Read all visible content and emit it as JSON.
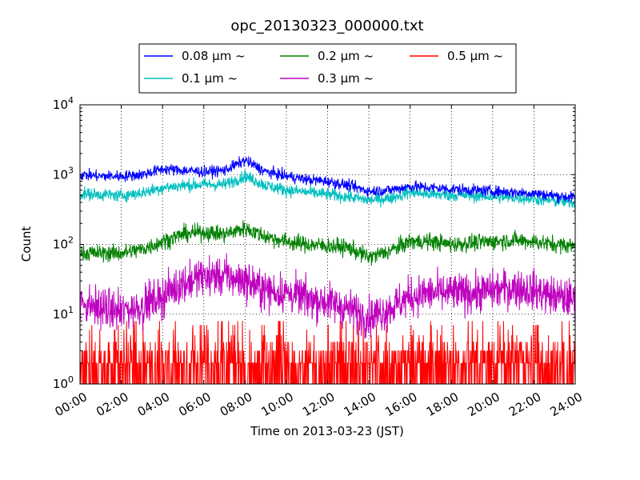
{
  "chart_data": {
    "type": "line",
    "title": "opc_20130323_000000.txt",
    "xlabel": "Time on 2013-03-23 (JST)",
    "ylabel": "Count",
    "y_scale": "log",
    "ylim": [
      1,
      10000
    ],
    "xlim": [
      "00:00",
      "24:00"
    ],
    "x_ticks": [
      "00:00",
      "02:00",
      "04:00",
      "06:00",
      "08:00",
      "10:00",
      "12:00",
      "14:00",
      "16:00",
      "18:00",
      "20:00",
      "22:00",
      "24:00"
    ],
    "y_ticks": [
      {
        "value": 1,
        "base": "10",
        "exp": "0"
      },
      {
        "value": 10,
        "base": "10",
        "exp": "1"
      },
      {
        "value": 100,
        "base": "10",
        "exp": "2"
      },
      {
        "value": 1000,
        "base": "10",
        "exp": "3"
      },
      {
        "value": 10000,
        "base": "10",
        "exp": "4"
      }
    ],
    "grid": true,
    "legend_position": "top",
    "legend": [
      {
        "label": "0.08 μm ~",
        "color": "#0000ff"
      },
      {
        "label": "0.2 μm ~",
        "color": "#008000"
      },
      {
        "label": "0.5 μm ~",
        "color": "#ff0000"
      },
      {
        "label": "0.1 μm ~",
        "color": "#00bfbf"
      },
      {
        "label": "0.3 μm ~",
        "color": "#bf00bf"
      }
    ],
    "series": [
      {
        "name": "0.08 μm ~",
        "color": "#0000ff",
        "noise": 0.08,
        "x": [
          "00:00",
          "01:00",
          "02:00",
          "03:00",
          "04:00",
          "05:00",
          "06:00",
          "07:00",
          "08:00",
          "09:00",
          "10:00",
          "11:00",
          "12:00",
          "13:00",
          "14:00",
          "15:00",
          "16:00",
          "17:00",
          "18:00",
          "19:00",
          "20:00",
          "21:00",
          "22:00",
          "23:00",
          "24:00"
        ],
        "y": [
          1000,
          950,
          950,
          1000,
          1200,
          1150,
          1100,
          1150,
          1600,
          1100,
          950,
          850,
          800,
          700,
          580,
          600,
          680,
          650,
          620,
          600,
          580,
          560,
          540,
          500,
          470
        ]
      },
      {
        "name": "0.1 μm ~",
        "color": "#00bfbf",
        "noise": 0.09,
        "x": [
          "00:00",
          "01:00",
          "02:00",
          "03:00",
          "04:00",
          "05:00",
          "06:00",
          "07:00",
          "08:00",
          "09:00",
          "10:00",
          "11:00",
          "12:00",
          "13:00",
          "14:00",
          "15:00",
          "16:00",
          "17:00",
          "18:00",
          "19:00",
          "20:00",
          "21:00",
          "22:00",
          "23:00",
          "24:00"
        ],
        "y": [
          530,
          520,
          500,
          550,
          650,
          700,
          720,
          720,
          950,
          700,
          600,
          560,
          520,
          480,
          430,
          460,
          560,
          520,
          510,
          500,
          480,
          470,
          450,
          420,
          400
        ]
      },
      {
        "name": "0.2 μm ~",
        "color": "#008000",
        "noise": 0.12,
        "x": [
          "00:00",
          "01:00",
          "02:00",
          "03:00",
          "04:00",
          "05:00",
          "06:00",
          "07:00",
          "08:00",
          "09:00",
          "10:00",
          "11:00",
          "12:00",
          "13:00",
          "14:00",
          "15:00",
          "16:00",
          "17:00",
          "18:00",
          "19:00",
          "20:00",
          "21:00",
          "22:00",
          "23:00",
          "24:00"
        ],
        "y": [
          75,
          75,
          75,
          85,
          110,
          140,
          150,
          140,
          170,
          130,
          110,
          100,
          95,
          90,
          65,
          80,
          110,
          110,
          100,
          105,
          110,
          115,
          110,
          100,
          95
        ]
      },
      {
        "name": "0.3 μm ~",
        "color": "#bf00bf",
        "noise": 0.28,
        "x": [
          "00:00",
          "01:00",
          "02:00",
          "03:00",
          "04:00",
          "05:00",
          "06:00",
          "07:00",
          "08:00",
          "09:00",
          "10:00",
          "11:00",
          "12:00",
          "13:00",
          "14:00",
          "15:00",
          "16:00",
          "17:00",
          "18:00",
          "19:00",
          "20:00",
          "21:00",
          "22:00",
          "23:00",
          "24:00"
        ],
        "y": [
          15,
          12,
          11,
          13,
          18,
          28,
          35,
          35,
          30,
          22,
          20,
          17,
          15,
          12,
          9,
          12,
          18,
          20,
          20,
          20,
          22,
          24,
          22,
          18,
          16
        ]
      },
      {
        "name": "0.5 μm ~",
        "color": "#ff0000",
        "discrete": true,
        "x": [
          "00:00",
          "02:00",
          "04:00",
          "06:00",
          "08:00",
          "10:00",
          "12:00",
          "14:00",
          "16:00",
          "18:00",
          "20:00",
          "22:00",
          "24:00"
        ],
        "y": [
          1.5,
          1.5,
          2,
          2.5,
          2.5,
          2,
          2,
          1.5,
          2,
          2,
          2.5,
          2,
          2
        ]
      }
    ]
  }
}
